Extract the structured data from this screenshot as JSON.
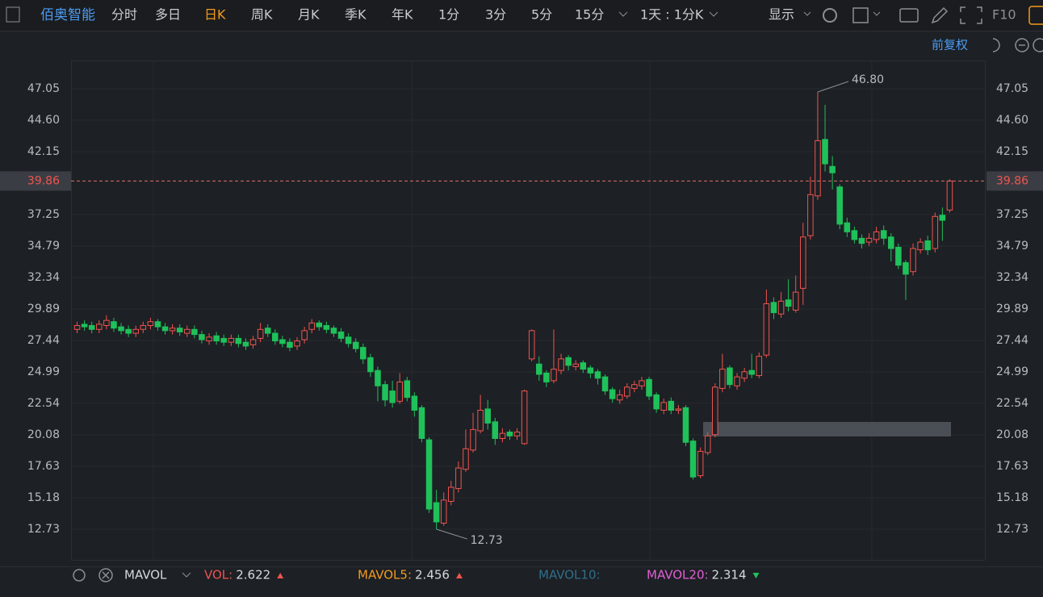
{
  "toolbar": {
    "title": "佰奥智能",
    "tabs": [
      "分时",
      "多日",
      "日K",
      "周K",
      "月K",
      "季K",
      "年K",
      "1分",
      "3分",
      "5分",
      "15分",
      "1天 : 1分K"
    ],
    "selected_tab": 2,
    "display": "显示",
    "f10": "F10"
  },
  "adjust": "前复权",
  "chart_data": {
    "type": "candlestick",
    "open": [
      28.3,
      28.7,
      28.6,
      28.3,
      28.6,
      28.9,
      28.5,
      28.3,
      28.0,
      28.3,
      28.6,
      28.9,
      28.5,
      28.2,
      28.4,
      28.0,
      28.3,
      27.9,
      27.4,
      27.8,
      27.6,
      27.3,
      27.6,
      27.3,
      27.1,
      27.6,
      28.4,
      28.0,
      27.5,
      27.3,
      27.0,
      27.5,
      28.3,
      28.8,
      28.6,
      28.4,
      28.1,
      27.7,
      27.3,
      26.9,
      26.1,
      25.1,
      24.0,
      23.5,
      22.7,
      24.3,
      23.1,
      22.2,
      19.7,
      14.8,
      13.2,
      14.9,
      15.9,
      17.4,
      18.9,
      20.4,
      22.1,
      21.1,
      19.8,
      20.3,
      20.0,
      19.4,
      26.0,
      25.6,
      24.9,
      24.3,
      25.1,
      26.1,
      25.4,
      25.7,
      25.3,
      25.0,
      24.6,
      23.6,
      22.8,
      23.1,
      23.7,
      23.9,
      24.4,
      23.2,
      22.0,
      22.7,
      22.0,
      22.2,
      19.6,
      16.9,
      18.7,
      20.1,
      23.7,
      25.3,
      23.9,
      24.5,
      25.1,
      24.7,
      26.3,
      30.4,
      29.5,
      30.6,
      29.8,
      31.5,
      35.6,
      38.7,
      43.1,
      41.0,
      39.4,
      36.6,
      36.0,
      35.4,
      35.1,
      35.3,
      36.0,
      35.5,
      34.7,
      33.5,
      32.8,
      34.5,
      35.2,
      34.6,
      37.2,
      37.6
    ],
    "high": [
      28.9,
      29.0,
      28.9,
      29.0,
      29.4,
      29.2,
      28.8,
      28.6,
      28.6,
      28.9,
      29.2,
      29.1,
      28.8,
      28.7,
      28.7,
      28.6,
      28.6,
      28.2,
      28.0,
      28.1,
      27.9,
      27.9,
      27.9,
      27.6,
      27.8,
      28.8,
      28.7,
      28.3,
      27.8,
      27.6,
      27.7,
      28.5,
      29.1,
      29.0,
      28.9,
      28.6,
      28.4,
      28.0,
      27.6,
      27.2,
      26.4,
      25.4,
      24.3,
      24.3,
      24.9,
      24.6,
      23.4,
      22.4,
      19.9,
      15.8,
      15.6,
      16.5,
      18.0,
      20.5,
      21.8,
      23.2,
      22.8,
      21.4,
      20.6,
      20.5,
      20.6,
      23.6,
      28.3,
      26.2,
      25.1,
      28.3,
      26.4,
      26.3,
      25.9,
      25.9,
      25.5,
      25.2,
      24.8,
      23.8,
      23.6,
      24.1,
      24.3,
      24.6,
      24.6,
      23.4,
      22.9,
      23.0,
      22.4,
      22.4,
      19.8,
      19.1,
      20.3,
      24.1,
      26.4,
      25.5,
      24.9,
      25.3,
      26.4,
      26.5,
      31.4,
      30.8,
      31.2,
      32.2,
      32.5,
      36.6,
      40.2,
      46.8,
      45.8,
      41.8,
      39.6,
      37.0,
      36.3,
      35.7,
      35.8,
      36.3,
      36.4,
      35.8,
      35.0,
      33.7,
      35.0,
      35.4,
      35.6,
      37.4,
      37.8,
      40.0
    ],
    "low": [
      28.0,
      28.2,
      28.0,
      28.0,
      28.3,
      28.1,
      27.9,
      27.7,
      27.7,
      28.0,
      28.3,
      28.2,
      27.9,
      27.9,
      27.8,
      27.7,
      27.6,
      27.2,
      27.1,
      27.1,
      27.0,
      27.0,
      26.9,
      26.7,
      26.8,
      27.3,
      27.7,
      27.1,
      26.9,
      26.6,
      26.7,
      27.2,
      28.0,
      28.2,
      28.0,
      27.7,
      27.3,
      26.9,
      26.5,
      25.6,
      24.6,
      22.7,
      22.3,
      22.2,
      22.5,
      22.7,
      21.5,
      19.5,
      14.0,
      12.73,
      13.0,
      14.6,
      15.6,
      17.2,
      18.7,
      20.2,
      20.5,
      19.3,
      19.5,
      19.7,
      19.7,
      19.3,
      25.8,
      24.3,
      23.8,
      24.1,
      24.8,
      25.1,
      25.1,
      24.9,
      24.5,
      24.0,
      23.2,
      22.6,
      22.5,
      22.9,
      23.4,
      23.6,
      22.8,
      21.8,
      21.7,
      21.7,
      21.7,
      19.2,
      16.6,
      16.7,
      18.5,
      19.9,
      23.4,
      23.7,
      23.6,
      24.2,
      24.5,
      24.5,
      26.1,
      29.1,
      29.2,
      29.7,
      29.6,
      30.2,
      35.3,
      38.4,
      40.6,
      39.2,
      36.1,
      35.5,
      35.0,
      34.6,
      34.8,
      35.0,
      34.9,
      33.6,
      33.0,
      30.6,
      32.5,
      34.2,
      34.1,
      34.3,
      35.2,
      37.4
    ],
    "close": [
      28.6,
      28.5,
      28.3,
      28.7,
      29.0,
      28.4,
      28.2,
      28.0,
      28.3,
      28.6,
      28.9,
      28.5,
      28.2,
      28.4,
      28.1,
      28.3,
      27.9,
      27.5,
      27.7,
      27.4,
      27.3,
      27.6,
      27.2,
      27.0,
      27.5,
      28.3,
      28.0,
      27.4,
      27.2,
      26.9,
      27.4,
      28.2,
      28.8,
      28.5,
      28.3,
      28.0,
      27.6,
      27.2,
      26.8,
      26.0,
      25.0,
      23.9,
      22.8,
      22.6,
      24.2,
      23.0,
      22.0,
      19.8,
      14.3,
      13.3,
      15.0,
      16.0,
      17.5,
      19.0,
      20.5,
      22.0,
      21.0,
      19.8,
      20.2,
      20.0,
      20.3,
      23.5,
      28.2,
      24.8,
      24.2,
      25.2,
      26.0,
      25.5,
      25.6,
      25.2,
      24.9,
      24.5,
      23.5,
      22.9,
      23.2,
      23.8,
      24.0,
      24.3,
      23.1,
      22.1,
      22.6,
      22.0,
      22.1,
      19.5,
      16.8,
      18.8,
      20.0,
      23.8,
      25.2,
      24.0,
      24.6,
      25.0,
      24.8,
      26.2,
      30.3,
      29.6,
      30.5,
      30.1,
      31.2,
      35.5,
      38.8,
      43.0,
      41.2,
      40.5,
      36.5,
      35.9,
      35.3,
      35.0,
      35.4,
      35.9,
      35.4,
      34.6,
      33.3,
      32.6,
      34.6,
      35.1,
      34.5,
      37.1,
      36.8,
      39.86
    ],
    "ylim": [
      10.34,
      49.25
    ],
    "yticks": [
      12.73,
      15.18,
      17.63,
      20.08,
      22.54,
      24.99,
      27.44,
      29.89,
      32.34,
      34.79,
      37.25,
      42.15,
      {
        "value": 44.6,
        "label": "44.60"
      },
      47.05
    ],
    "last_price": 39.86,
    "high_label": "46.80",
    "low_label": "12.73",
    "up_color": "#f0534f",
    "down_color": "#1fc15a",
    "grid": true
  },
  "indicator": {
    "name": "MAVOL",
    "items": [
      {
        "name": "VOL:",
        "value": 2.622,
        "color": "#f0534f",
        "trend": "up"
      },
      {
        "name": "MAVOL5:",
        "value": 2.456,
        "color": "#f39a1e",
        "trend": "up"
      },
      {
        "name": "MAVOL10:",
        "color": "#2f6f8c"
      },
      {
        "name": "MAVOL20:",
        "value": 2.314,
        "color": "#e25fd6",
        "trend": "down"
      }
    ]
  }
}
